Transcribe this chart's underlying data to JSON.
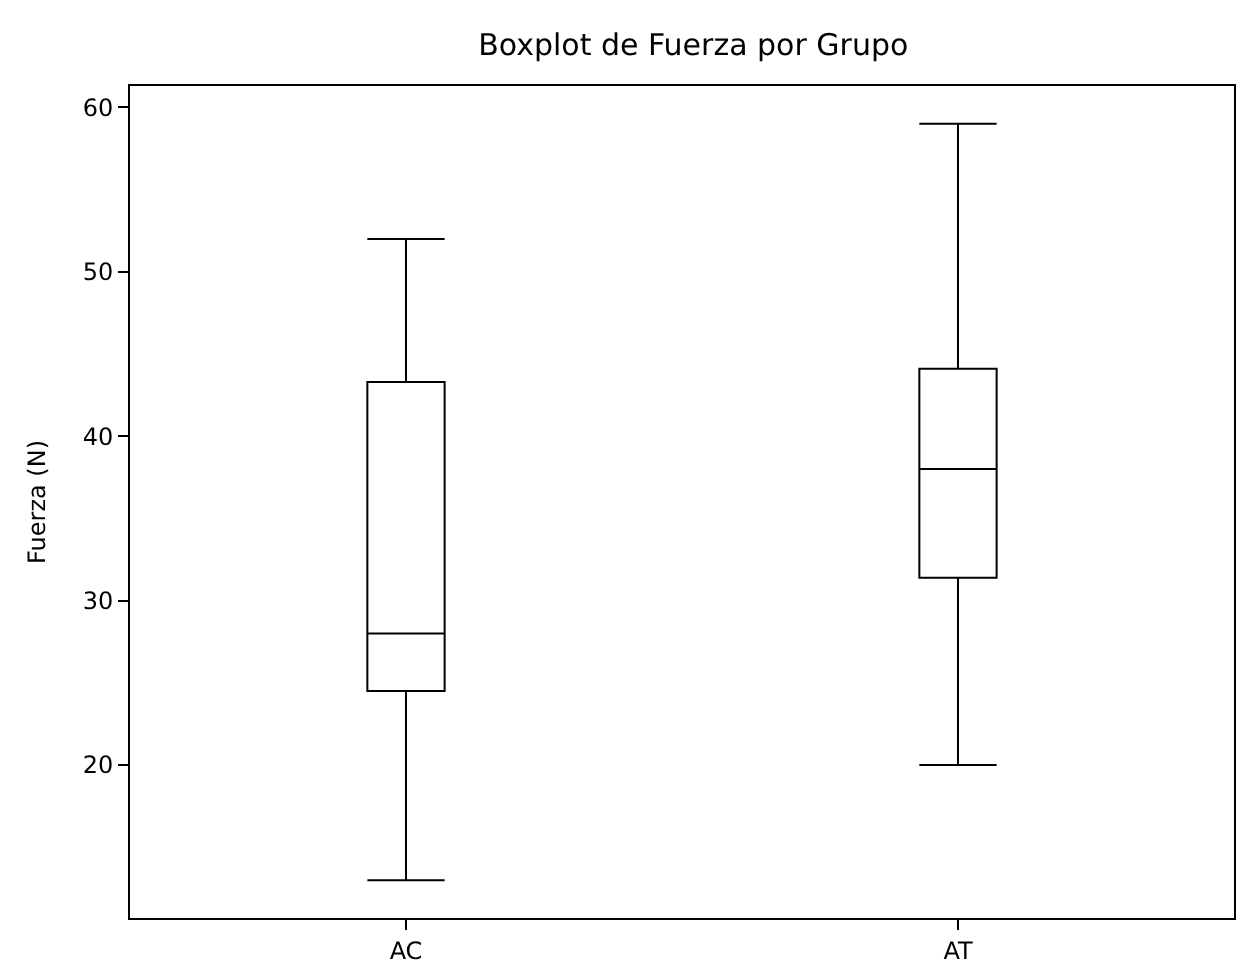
{
  "chart_data": {
    "type": "box",
    "title": "Boxplot de Fuerza por Grupo",
    "ylabel": "Fuerza (N)",
    "categories": [
      "AC",
      "AT"
    ],
    "boxes": [
      {
        "low": 13,
        "q1": 24.5,
        "median": 28,
        "q3": 43.3,
        "high": 52
      },
      {
        "low": 20,
        "q1": 31.4,
        "median": 38,
        "q3": 44.1,
        "high": 59
      }
    ],
    "color": "#000000",
    "ylim": [
      10.7,
      61.3
    ],
    "yticks": [
      20,
      30,
      40,
      50,
      60
    ]
  }
}
